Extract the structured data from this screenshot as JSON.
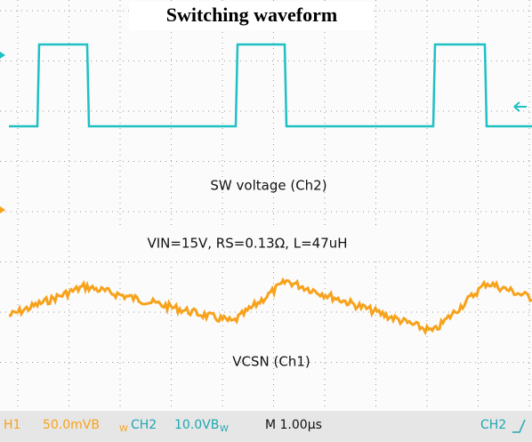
{
  "header": {
    "title": "Switching waveform"
  },
  "labels": {
    "sw": "SW voltage (Ch2)",
    "params": "VIN=15V, RS=0.13Ω, L=47uH",
    "vcsn": "VCSN (Ch1)"
  },
  "status": {
    "ch1": "H1",
    "ch1_scale": "50.0mVB",
    "ch1_bw": "W",
    "ch2": "CH2",
    "ch2_scale": "10.0VB",
    "ch2_bw": "W",
    "time": "M 1.00µs",
    "trigger": "CH2"
  }
}
